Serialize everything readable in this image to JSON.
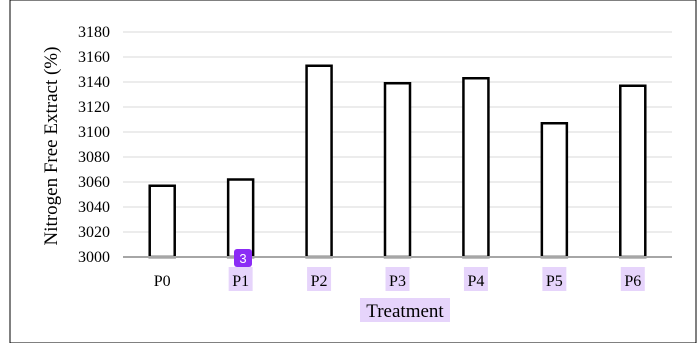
{
  "chart_data": {
    "type": "bar",
    "categories": [
      "P0",
      "P1",
      "P2",
      "P3",
      "P4",
      "P5",
      "P6"
    ],
    "values": [
      3057,
      3062,
      3153,
      3139,
      3143,
      3107,
      3137
    ],
    "xlabel": "Treatment",
    "ylabel": "Nitrogen Free Extract (%)",
    "ylim": [
      3000,
      3180
    ],
    "yticks": [
      3000,
      3020,
      3040,
      3060,
      3080,
      3100,
      3120,
      3140,
      3160,
      3180
    ],
    "grid": true,
    "legend": "none"
  },
  "colors": {
    "bar_fill": "#ffffff",
    "bar_stroke": "#000000",
    "gridline": "#d9d9d9",
    "baseline": "#a6a6a6",
    "highlight": "#e6d4fb",
    "badge": "#8b2cf5"
  },
  "annotation": {
    "badge_label": "3",
    "highlighted_categories": [
      "P1",
      "P2",
      "P3",
      "P4",
      "P5",
      "P6"
    ],
    "highlight_xlabel": true
  }
}
